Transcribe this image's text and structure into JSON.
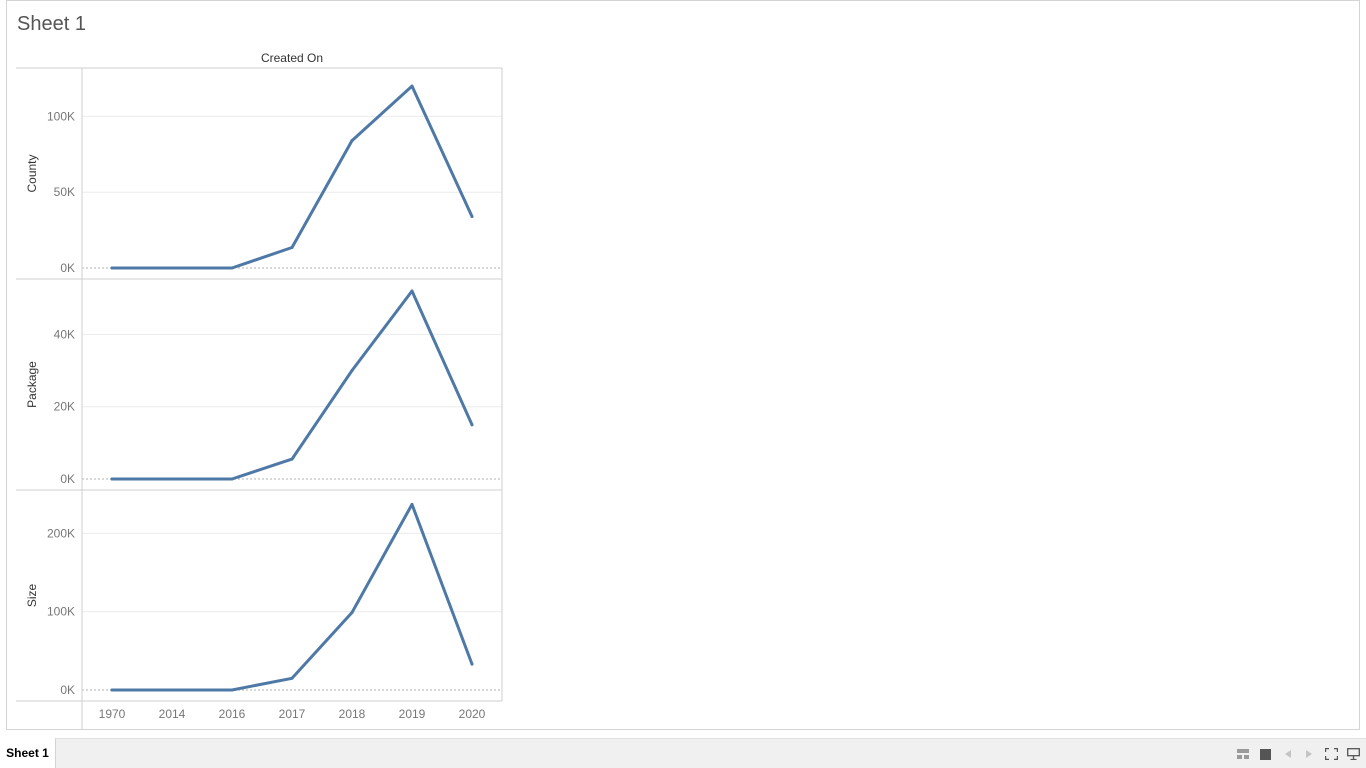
{
  "sheet": {
    "title": "Sheet 1"
  },
  "tabs": [
    {
      "label": "Sheet 1",
      "active": true
    }
  ],
  "toolbar_icons": [
    "show-sheets-as-thumbnails-icon",
    "show-filmstrip-icon",
    "previous-sheet-icon",
    "next-sheet-icon",
    "fit-to-window-icon",
    "presentation-mode-icon"
  ],
  "colors": {
    "line": "#4e79a7",
    "grid": "#ececec",
    "zero_line": "#b0b0b0",
    "axis_text": "#777777"
  },
  "chart_data": {
    "type": "line",
    "title": "Created On",
    "x_categories": [
      "1970",
      "2014",
      "2016",
      "2017",
      "2018",
      "2019",
      "2020"
    ],
    "panels": [
      {
        "ylabel": "County",
        "ylim": [
          0,
          124000
        ],
        "ticks": [
          0,
          50000,
          100000
        ],
        "tick_labels": [
          "0K",
          "50K",
          "100K"
        ],
        "values": [
          0,
          0,
          0,
          13500,
          84000,
          120000,
          34000
        ]
      },
      {
        "ylabel": "Package",
        "ylim": [
          0,
          52000
        ],
        "ticks": [
          0,
          20000,
          40000
        ],
        "tick_labels": [
          "0K",
          "20K",
          "40K"
        ],
        "values": [
          0,
          0,
          0,
          5500,
          30000,
          52000,
          15000
        ]
      },
      {
        "ylabel": "Size",
        "ylim": [
          0,
          240000
        ],
        "ticks": [
          0,
          100000,
          200000
        ],
        "tick_labels": [
          "0K",
          "100K",
          "200K"
        ],
        "values": [
          0,
          0,
          0,
          15000,
          99000,
          237000,
          33000
        ]
      }
    ],
    "grid": true
  }
}
